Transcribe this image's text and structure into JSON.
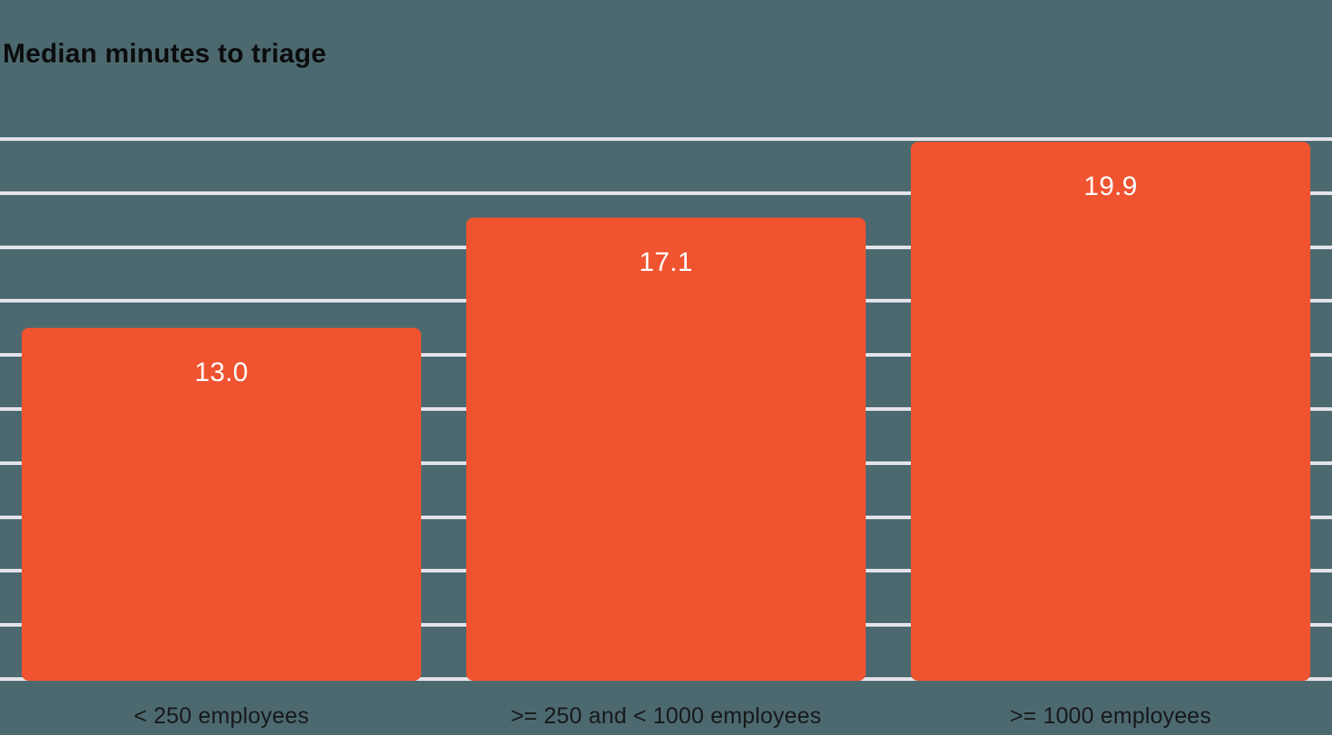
{
  "title": "Median minutes to triage",
  "colors": {
    "background": "#4D6970",
    "bar": "#F05330",
    "gridline": "#E4E3EA",
    "title_text": "#0B0C0D",
    "value_label_text": "#FFFFFF",
    "category_text": "#16181A"
  },
  "chart_data": {
    "type": "bar",
    "title": "Median minutes to triage",
    "categories": [
      "< 250 employees",
      ">= 250 and < 1000 employees",
      ">= 1000 employees"
    ],
    "values": [
      13.0,
      17.1,
      19.9
    ],
    "value_labels": [
      "13.0",
      "17.1",
      "19.9"
    ],
    "xlabel": "",
    "ylabel": "",
    "ylim": [
      0,
      20
    ],
    "grid_step": 2,
    "grid": "horizontal-only",
    "legend": "none",
    "bar_value_label_position": "inside-top-center"
  }
}
